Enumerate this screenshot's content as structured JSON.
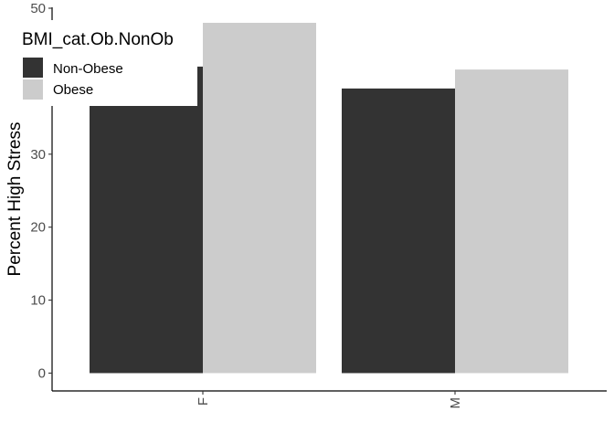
{
  "chart_data": {
    "type": "bar",
    "title": "",
    "xlabel": "",
    "ylabel": "Percent High Stress",
    "categories": [
      "F",
      "M"
    ],
    "series": [
      {
        "name": "Non-Obese",
        "values": [
          42,
          39
        ],
        "color": "#333333"
      },
      {
        "name": "Obese",
        "values": [
          48,
          41.6
        ],
        "color": "#cccccc"
      }
    ],
    "ylim": [
      0,
      50
    ],
    "yticks": [
      0,
      10,
      20,
      30,
      40,
      50
    ],
    "ytick_labels": [
      "0",
      "10",
      "20",
      "30",
      "",
      "50"
    ],
    "legend": {
      "title": "BMI_cat.Ob.NonOb",
      "placement": "top-left"
    },
    "grid": false
  }
}
